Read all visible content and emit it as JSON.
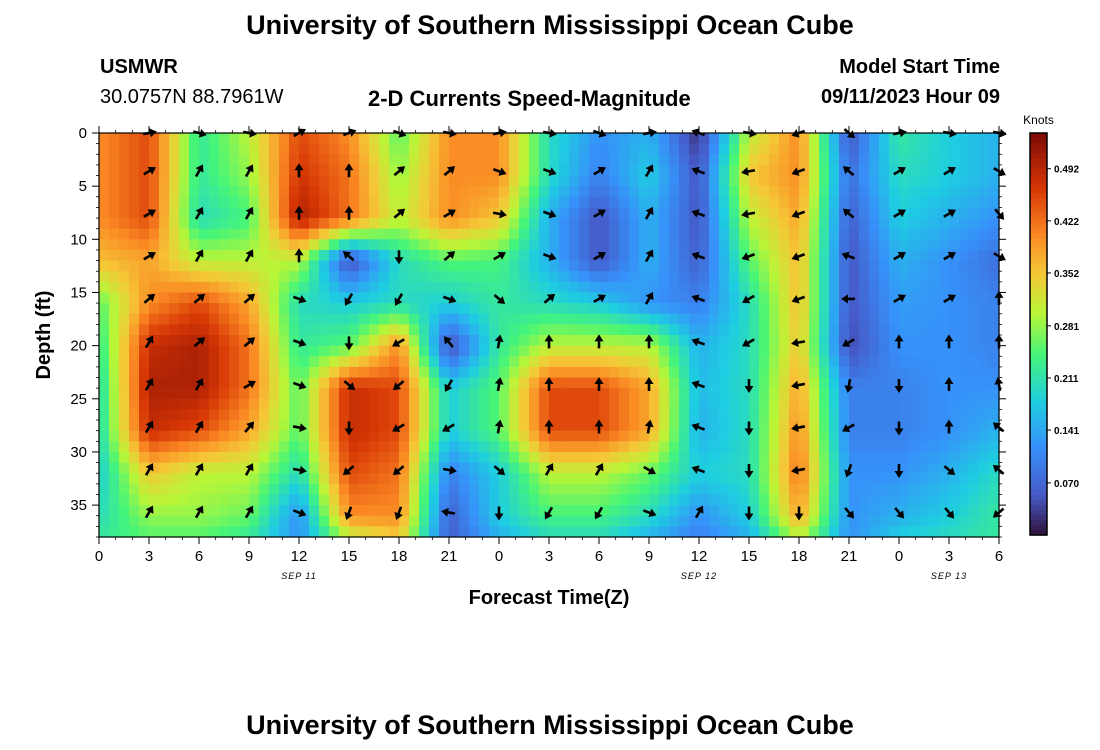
{
  "page": {
    "title_top": "University of Southern Mississippi Ocean Cube",
    "title_bottom": "University of Southern Mississippi Ocean Cube",
    "station_id": "USMWR",
    "station_coords": "30.0757N  88.7961W",
    "subtitle": "2-D Currents Speed-Magnitude",
    "model_label": "Model Start Time",
    "model_time": "09/11/2023 Hour 09"
  },
  "chart_data": {
    "type": "heatmap",
    "title": "2-D Currents Speed-Magnitude",
    "xlabel": "Forecast Time(Z)",
    "ylabel": "Depth (ft)",
    "x_ticks": [
      "0",
      "3",
      "6",
      "9",
      "12",
      "15",
      "18",
      "21",
      "0",
      "3",
      "6",
      "9",
      "12",
      "15",
      "18",
      "21",
      "0",
      "3",
      "6"
    ],
    "x_hours": [
      0,
      3,
      6,
      9,
      12,
      15,
      18,
      21,
      24,
      27,
      30,
      33,
      36,
      39,
      42,
      45,
      48,
      51,
      54
    ],
    "xlim": [
      0,
      54
    ],
    "date_labels": [
      {
        "label": "SEP 11",
        "hour": 12
      },
      {
        "label": "SEP 12",
        "hour": 36
      },
      {
        "label": "SEP 13",
        "hour": 51
      }
    ],
    "y_ticks": [
      "0",
      "5",
      "10",
      "15",
      "20",
      "25",
      "30",
      "35"
    ],
    "y_values": [
      0,
      5,
      10,
      15,
      20,
      25,
      30,
      35
    ],
    "ylim": [
      0,
      38
    ],
    "colorbar": {
      "title": "Knots",
      "ticks": [
        "0.070",
        "0.141",
        "0.211",
        "0.281",
        "0.352",
        "0.422",
        "0.492"
      ],
      "range": [
        0.0,
        0.54
      ]
    },
    "speed_grid_hours": [
      0,
      3,
      6,
      9,
      12,
      15,
      18,
      21,
      24,
      27,
      30,
      33,
      36,
      39,
      42,
      45,
      48,
      51,
      54
    ],
    "speed_grid_depths": [
      0,
      4,
      8,
      12,
      16,
      20,
      24,
      28,
      32,
      36,
      38
    ],
    "speed_knots": [
      [
        0.4,
        0.45,
        0.22,
        0.3,
        0.45,
        0.4,
        0.25,
        0.4,
        0.4,
        0.2,
        0.12,
        0.15,
        0.02,
        0.3,
        0.4,
        0.05,
        0.22,
        0.18,
        0.15
      ],
      [
        0.4,
        0.45,
        0.22,
        0.28,
        0.47,
        0.42,
        0.28,
        0.4,
        0.4,
        0.2,
        0.1,
        0.18,
        0.05,
        0.35,
        0.4,
        0.08,
        0.2,
        0.18,
        0.15
      ],
      [
        0.4,
        0.45,
        0.2,
        0.24,
        0.5,
        0.42,
        0.3,
        0.4,
        0.35,
        0.15,
        0.05,
        0.15,
        0.05,
        0.3,
        0.38,
        0.06,
        0.18,
        0.15,
        0.12
      ],
      [
        0.36,
        0.38,
        0.3,
        0.3,
        0.3,
        0.04,
        0.2,
        0.25,
        0.24,
        0.15,
        0.05,
        0.15,
        0.06,
        0.25,
        0.36,
        0.05,
        0.15,
        0.12,
        0.08
      ],
      [
        0.25,
        0.4,
        0.45,
        0.38,
        0.2,
        0.18,
        0.2,
        0.18,
        0.22,
        0.2,
        0.18,
        0.12,
        0.1,
        0.2,
        0.36,
        0.05,
        0.13,
        0.12,
        0.1
      ],
      [
        0.22,
        0.48,
        0.5,
        0.42,
        0.22,
        0.25,
        0.4,
        0.04,
        0.22,
        0.3,
        0.3,
        0.3,
        0.15,
        0.2,
        0.35,
        0.04,
        0.12,
        0.12,
        0.1
      ],
      [
        0.2,
        0.5,
        0.5,
        0.42,
        0.25,
        0.48,
        0.45,
        0.18,
        0.25,
        0.45,
        0.45,
        0.38,
        0.16,
        0.2,
        0.38,
        0.1,
        0.1,
        0.12,
        0.12
      ],
      [
        0.2,
        0.48,
        0.45,
        0.38,
        0.25,
        0.48,
        0.45,
        0.18,
        0.25,
        0.45,
        0.45,
        0.38,
        0.15,
        0.2,
        0.4,
        0.1,
        0.1,
        0.12,
        0.15
      ],
      [
        0.18,
        0.35,
        0.3,
        0.3,
        0.2,
        0.45,
        0.42,
        0.1,
        0.18,
        0.3,
        0.3,
        0.26,
        0.18,
        0.2,
        0.42,
        0.12,
        0.12,
        0.15,
        0.2
      ],
      [
        0.2,
        0.28,
        0.28,
        0.26,
        0.12,
        0.4,
        0.4,
        0.06,
        0.18,
        0.24,
        0.24,
        0.2,
        0.12,
        0.18,
        0.38,
        0.12,
        0.15,
        0.18,
        0.22
      ],
      [
        0.22,
        0.25,
        0.25,
        0.22,
        0.12,
        0.3,
        0.35,
        0.06,
        0.15,
        0.2,
        0.2,
        0.15,
        0.1,
        0.15,
        0.3,
        0.12,
        0.18,
        0.2,
        0.22
      ]
    ],
    "vector_hours": [
      3,
      6,
      9,
      12,
      15,
      18,
      21,
      24,
      27,
      30,
      33,
      36,
      39,
      42,
      45,
      48,
      51,
      54
    ],
    "vector_depths": [
      0,
      3.6,
      7.6,
      11.6,
      15.6,
      19.7,
      23.7,
      27.7,
      31.7,
      35.7
    ],
    "direction_deg": [
      [
        350,
        15,
        10,
        330,
        340,
        20,
        10,
        350,
        10,
        20,
        350,
        200,
        10,
        160,
        40,
        350,
        10,
        10
      ],
      [
        330,
        300,
        300,
        270,
        270,
        320,
        320,
        20,
        20,
        330,
        300,
        200,
        170,
        160,
        220,
        330,
        330,
        30
      ],
      [
        330,
        300,
        300,
        270,
        270,
        320,
        330,
        10,
        20,
        330,
        300,
        200,
        170,
        160,
        220,
        330,
        330,
        50
      ],
      [
        330,
        300,
        300,
        270,
        220,
        90,
        320,
        330,
        20,
        330,
        300,
        200,
        160,
        160,
        200,
        330,
        330,
        30
      ],
      [
        320,
        320,
        320,
        20,
        120,
        120,
        20,
        40,
        320,
        330,
        300,
        200,
        150,
        160,
        180,
        330,
        330,
        270
      ],
      [
        300,
        320,
        320,
        20,
        90,
        150,
        230,
        280,
        270,
        270,
        270,
        200,
        150,
        170,
        150,
        270,
        270,
        270
      ],
      [
        300,
        300,
        330,
        20,
        40,
        140,
        120,
        280,
        270,
        270,
        270,
        200,
        90,
        170,
        100,
        90,
        270,
        260
      ],
      [
        300,
        300,
        310,
        10,
        90,
        150,
        150,
        280,
        270,
        270,
        280,
        200,
        90,
        170,
        150,
        90,
        270,
        220
      ],
      [
        300,
        300,
        300,
        10,
        140,
        140,
        10,
        40,
        300,
        300,
        30,
        200,
        90,
        170,
        110,
        90,
        40,
        220
      ],
      [
        300,
        300,
        300,
        20,
        110,
        110,
        190,
        90,
        120,
        120,
        20,
        300,
        90,
        90,
        50,
        50,
        50,
        140
      ]
    ]
  }
}
